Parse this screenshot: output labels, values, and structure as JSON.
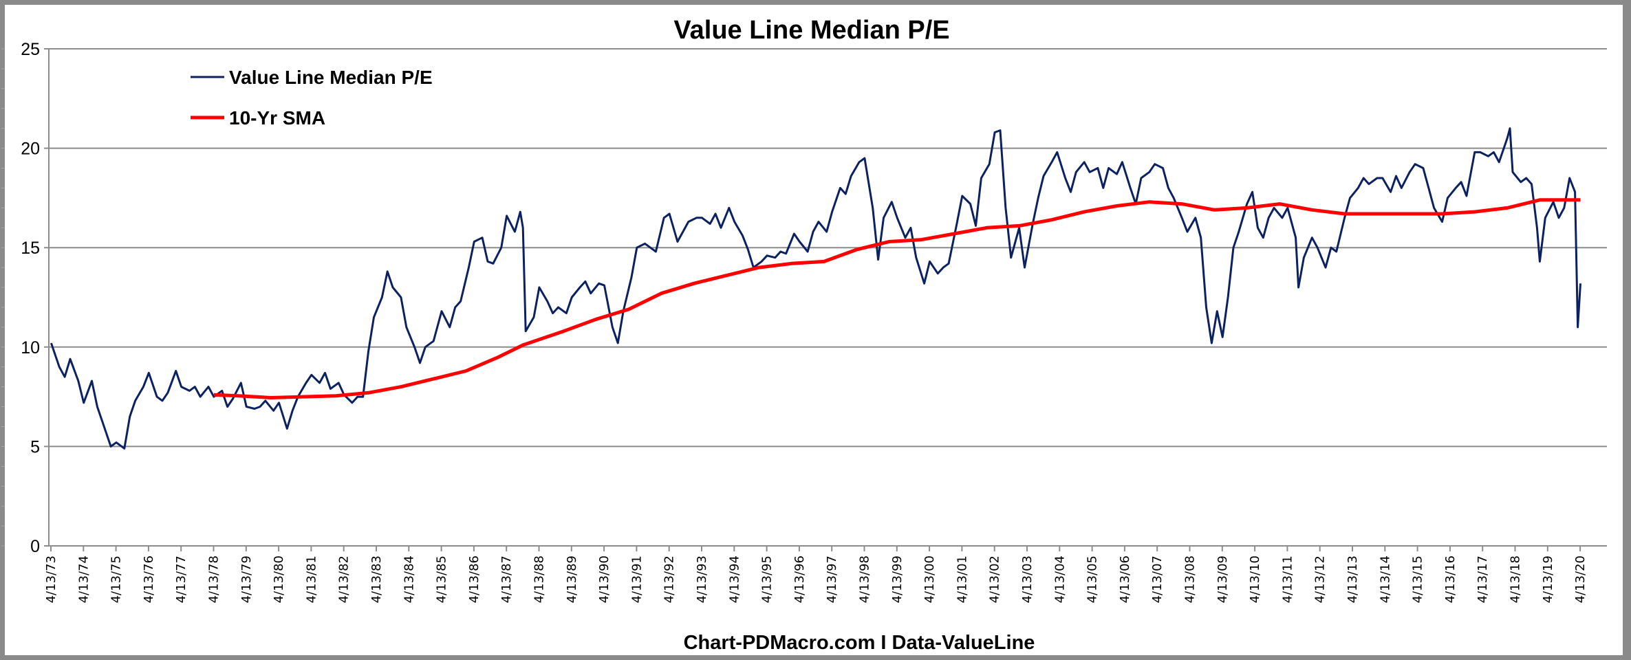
{
  "chart_data": {
    "type": "line",
    "title": "Value Line Median P/E",
    "footer": "Chart-PDMacro.com I Data-ValueLine",
    "ylim": [
      0,
      25
    ],
    "yticks": [
      0,
      5,
      10,
      15,
      20,
      25
    ],
    "grid": true,
    "legend_placement": "top-left",
    "xticks": [
      "4/13/73",
      "4/13/74",
      "4/13/75",
      "4/13/76",
      "4/13/77",
      "4/13/78",
      "4/13/79",
      "4/13/80",
      "4/13/81",
      "4/13/82",
      "4/13/83",
      "4/13/84",
      "4/13/85",
      "4/13/86",
      "4/13/87",
      "4/13/88",
      "4/13/89",
      "4/13/90",
      "4/13/91",
      "4/13/92",
      "4/13/93",
      "4/13/94",
      "4/13/95",
      "4/13/96",
      "4/13/97",
      "4/13/98",
      "4/13/99",
      "4/13/00",
      "4/13/01",
      "4/13/02",
      "4/13/03",
      "4/13/04",
      "4/13/05",
      "4/13/06",
      "4/13/07",
      "4/13/08",
      "4/13/09",
      "4/13/10",
      "4/13/11",
      "4/13/12",
      "4/13/13",
      "4/13/14",
      "4/13/15",
      "4/13/16",
      "4/13/17",
      "4/13/18",
      "4/13/19",
      "4/13/20"
    ],
    "series": [
      {
        "name": "Value Line Median P/E",
        "color": "#0b2161",
        "points": [
          [
            "1973-04",
            10.2
          ],
          [
            "1973-07",
            9.0
          ],
          [
            "1973-09",
            8.5
          ],
          [
            "1973-11",
            9.4
          ],
          [
            "1974-02",
            8.3
          ],
          [
            "1974-04",
            7.2
          ],
          [
            "1974-07",
            8.3
          ],
          [
            "1974-09",
            7.0
          ],
          [
            "1974-11",
            6.2
          ],
          [
            "1975-02",
            5.0
          ],
          [
            "1975-04",
            5.2
          ],
          [
            "1975-07",
            4.9
          ],
          [
            "1975-09",
            6.5
          ],
          [
            "1975-11",
            7.3
          ],
          [
            "1976-02",
            8.0
          ],
          [
            "1976-04",
            8.7
          ],
          [
            "1976-07",
            7.5
          ],
          [
            "1976-09",
            7.3
          ],
          [
            "1976-11",
            7.7
          ],
          [
            "1977-02",
            8.8
          ],
          [
            "1977-04",
            8.0
          ],
          [
            "1977-07",
            7.8
          ],
          [
            "1977-09",
            8.0
          ],
          [
            "1977-11",
            7.5
          ],
          [
            "1978-02",
            8.0
          ],
          [
            "1978-04",
            7.5
          ],
          [
            "1978-07",
            7.8
          ],
          [
            "1978-09",
            7.0
          ],
          [
            "1978-11",
            7.4
          ],
          [
            "1979-02",
            8.2
          ],
          [
            "1979-04",
            7.0
          ],
          [
            "1979-07",
            6.9
          ],
          [
            "1979-09",
            7.0
          ],
          [
            "1979-11",
            7.3
          ],
          [
            "1980-02",
            6.8
          ],
          [
            "1980-04",
            7.2
          ],
          [
            "1980-07",
            5.9
          ],
          [
            "1980-09",
            6.8
          ],
          [
            "1980-11",
            7.5
          ],
          [
            "1981-02",
            8.2
          ],
          [
            "1981-04",
            8.6
          ],
          [
            "1981-07",
            8.2
          ],
          [
            "1981-09",
            8.7
          ],
          [
            "1981-11",
            7.9
          ],
          [
            "1982-02",
            8.2
          ],
          [
            "1982-04",
            7.6
          ],
          [
            "1982-07",
            7.2
          ],
          [
            "1982-09",
            7.5
          ],
          [
            "1982-11",
            7.5
          ],
          [
            "1983-01",
            9.8
          ],
          [
            "1983-03",
            11.5
          ],
          [
            "1983-06",
            12.5
          ],
          [
            "1983-08",
            13.8
          ],
          [
            "1983-10",
            13.0
          ],
          [
            "1984-01",
            12.5
          ],
          [
            "1984-03",
            11.0
          ],
          [
            "1984-06",
            10.0
          ],
          [
            "1984-08",
            9.2
          ],
          [
            "1984-10",
            10.0
          ],
          [
            "1985-01",
            10.3
          ],
          [
            "1985-04",
            11.8
          ],
          [
            "1985-07",
            11.0
          ],
          [
            "1985-09",
            12.0
          ],
          [
            "1985-11",
            12.3
          ],
          [
            "1986-02",
            14.0
          ],
          [
            "1986-04",
            15.3
          ],
          [
            "1986-07",
            15.5
          ],
          [
            "1986-09",
            14.3
          ],
          [
            "1986-11",
            14.2
          ],
          [
            "1987-02",
            15.0
          ],
          [
            "1987-04",
            16.6
          ],
          [
            "1987-07",
            15.8
          ],
          [
            "1987-09",
            16.8
          ],
          [
            "1987-10",
            16.0
          ],
          [
            "1987-11",
            10.8
          ],
          [
            "1988-02",
            11.5
          ],
          [
            "1988-04",
            13.0
          ],
          [
            "1988-07",
            12.3
          ],
          [
            "1988-09",
            11.7
          ],
          [
            "1988-11",
            12.0
          ],
          [
            "1989-02",
            11.7
          ],
          [
            "1989-04",
            12.5
          ],
          [
            "1989-07",
            13.0
          ],
          [
            "1989-09",
            13.3
          ],
          [
            "1989-11",
            12.7
          ],
          [
            "1990-02",
            13.2
          ],
          [
            "1990-04",
            13.1
          ],
          [
            "1990-07",
            11.0
          ],
          [
            "1990-09",
            10.2
          ],
          [
            "1990-11",
            11.8
          ],
          [
            "1991-02",
            13.5
          ],
          [
            "1991-04",
            15.0
          ],
          [
            "1991-07",
            15.2
          ],
          [
            "1991-09",
            15.0
          ],
          [
            "1991-11",
            14.8
          ],
          [
            "1992-02",
            16.5
          ],
          [
            "1992-04",
            16.7
          ],
          [
            "1992-07",
            15.3
          ],
          [
            "1992-09",
            15.8
          ],
          [
            "1992-11",
            16.3
          ],
          [
            "1993-02",
            16.5
          ],
          [
            "1993-04",
            16.5
          ],
          [
            "1993-07",
            16.2
          ],
          [
            "1993-09",
            16.7
          ],
          [
            "1993-11",
            16.0
          ],
          [
            "1994-02",
            17.0
          ],
          [
            "1994-04",
            16.3
          ],
          [
            "1994-07",
            15.6
          ],
          [
            "1994-09",
            14.9
          ],
          [
            "1994-11",
            14.0
          ],
          [
            "1995-02",
            14.3
          ],
          [
            "1995-04",
            14.6
          ],
          [
            "1995-07",
            14.5
          ],
          [
            "1995-09",
            14.8
          ],
          [
            "1995-11",
            14.7
          ],
          [
            "1996-02",
            15.7
          ],
          [
            "1996-04",
            15.3
          ],
          [
            "1996-07",
            14.8
          ],
          [
            "1996-09",
            15.8
          ],
          [
            "1996-11",
            16.3
          ],
          [
            "1997-02",
            15.8
          ],
          [
            "1997-04",
            16.8
          ],
          [
            "1997-07",
            18.0
          ],
          [
            "1997-09",
            17.7
          ],
          [
            "1997-11",
            18.6
          ],
          [
            "1998-02",
            19.3
          ],
          [
            "1998-04",
            19.5
          ],
          [
            "1998-07",
            17.0
          ],
          [
            "1998-09",
            14.4
          ],
          [
            "1998-11",
            16.5
          ],
          [
            "1999-02",
            17.3
          ],
          [
            "1999-04",
            16.5
          ],
          [
            "1999-07",
            15.5
          ],
          [
            "1999-09",
            16.0
          ],
          [
            "1999-11",
            14.5
          ],
          [
            "2000-02",
            13.2
          ],
          [
            "2000-04",
            14.3
          ],
          [
            "2000-07",
            13.7
          ],
          [
            "2000-09",
            14.0
          ],
          [
            "2000-11",
            14.2
          ],
          [
            "2001-02",
            16.2
          ],
          [
            "2001-04",
            17.6
          ],
          [
            "2001-07",
            17.2
          ],
          [
            "2001-09",
            16.1
          ],
          [
            "2001-11",
            18.5
          ],
          [
            "2002-02",
            19.2
          ],
          [
            "2002-04",
            20.8
          ],
          [
            "2002-06",
            20.9
          ],
          [
            "2002-08",
            17.0
          ],
          [
            "2002-10",
            14.5
          ],
          [
            "2003-01",
            16.0
          ],
          [
            "2003-03",
            14.0
          ],
          [
            "2003-06",
            16.2
          ],
          [
            "2003-08",
            17.5
          ],
          [
            "2003-10",
            18.6
          ],
          [
            "2004-01",
            19.3
          ],
          [
            "2004-03",
            19.8
          ],
          [
            "2004-06",
            18.5
          ],
          [
            "2004-08",
            17.8
          ],
          [
            "2004-10",
            18.8
          ],
          [
            "2005-01",
            19.3
          ],
          [
            "2005-03",
            18.8
          ],
          [
            "2005-06",
            19.0
          ],
          [
            "2005-08",
            18.0
          ],
          [
            "2005-10",
            19.0
          ],
          [
            "2006-01",
            18.7
          ],
          [
            "2006-03",
            19.3
          ],
          [
            "2006-06",
            18.0
          ],
          [
            "2006-08",
            17.2
          ],
          [
            "2006-10",
            18.5
          ],
          [
            "2007-01",
            18.8
          ],
          [
            "2007-03",
            19.2
          ],
          [
            "2007-06",
            19.0
          ],
          [
            "2007-08",
            18.0
          ],
          [
            "2007-10",
            17.5
          ],
          [
            "2008-01",
            16.5
          ],
          [
            "2008-03",
            15.8
          ],
          [
            "2008-06",
            16.5
          ],
          [
            "2008-08",
            15.5
          ],
          [
            "2008-10",
            12.0
          ],
          [
            "2008-12",
            10.2
          ],
          [
            "2009-02",
            11.8
          ],
          [
            "2009-04",
            10.5
          ],
          [
            "2009-06",
            12.5
          ],
          [
            "2009-08",
            15.0
          ],
          [
            "2009-10",
            15.8
          ],
          [
            "2010-01",
            17.2
          ],
          [
            "2010-03",
            17.8
          ],
          [
            "2010-05",
            16.0
          ],
          [
            "2010-07",
            15.5
          ],
          [
            "2010-09",
            16.5
          ],
          [
            "2010-11",
            17.0
          ],
          [
            "2011-02",
            16.5
          ],
          [
            "2011-04",
            17.0
          ],
          [
            "2011-07",
            15.5
          ],
          [
            "2011-08",
            13.0
          ],
          [
            "2011-10",
            14.5
          ],
          [
            "2012-01",
            15.5
          ],
          [
            "2012-03",
            15.0
          ],
          [
            "2012-06",
            14.0
          ],
          [
            "2012-08",
            15.0
          ],
          [
            "2012-10",
            14.8
          ],
          [
            "2013-01",
            16.5
          ],
          [
            "2013-03",
            17.5
          ],
          [
            "2013-06",
            18.0
          ],
          [
            "2013-08",
            18.5
          ],
          [
            "2013-10",
            18.2
          ],
          [
            "2014-01",
            18.5
          ],
          [
            "2014-03",
            18.5
          ],
          [
            "2014-06",
            17.8
          ],
          [
            "2014-08",
            18.6
          ],
          [
            "2014-10",
            18.0
          ],
          [
            "2015-01",
            18.8
          ],
          [
            "2015-03",
            19.2
          ],
          [
            "2015-06",
            19.0
          ],
          [
            "2015-08",
            18.0
          ],
          [
            "2015-10",
            17.0
          ],
          [
            "2016-01",
            16.3
          ],
          [
            "2016-03",
            17.5
          ],
          [
            "2016-06",
            18.0
          ],
          [
            "2016-08",
            18.3
          ],
          [
            "2016-10",
            17.6
          ],
          [
            "2017-01",
            19.8
          ],
          [
            "2017-03",
            19.8
          ],
          [
            "2017-06",
            19.6
          ],
          [
            "2017-08",
            19.8
          ],
          [
            "2017-10",
            19.3
          ],
          [
            "2018-01",
            20.5
          ],
          [
            "2018-02",
            21.0
          ],
          [
            "2018-03",
            18.8
          ],
          [
            "2018-06",
            18.3
          ],
          [
            "2018-08",
            18.5
          ],
          [
            "2018-10",
            18.2
          ],
          [
            "2018-12",
            16.0
          ],
          [
            "2019-01",
            14.3
          ],
          [
            "2019-03",
            16.5
          ],
          [
            "2019-06",
            17.3
          ],
          [
            "2019-08",
            16.5
          ],
          [
            "2019-10",
            17.0
          ],
          [
            "2019-12",
            18.5
          ],
          [
            "2020-02",
            17.8
          ],
          [
            "2020-03",
            11.0
          ],
          [
            "2020-04",
            13.2
          ]
        ]
      },
      {
        "name": "10-Yr SMA",
        "color": "#ff0000",
        "points": [
          [
            "1978-04",
            7.6
          ],
          [
            "1979-01",
            7.55
          ],
          [
            "1980-01",
            7.45
          ],
          [
            "1981-01",
            7.5
          ],
          [
            "1982-01",
            7.55
          ],
          [
            "1983-01",
            7.7
          ],
          [
            "1984-01",
            8.0
          ],
          [
            "1985-01",
            8.4
          ],
          [
            "1986-01",
            8.8
          ],
          [
            "1987-01",
            9.5
          ],
          [
            "1987-10",
            10.1
          ],
          [
            "1989-01",
            10.8
          ],
          [
            "1990-01",
            11.4
          ],
          [
            "1991-01",
            11.9
          ],
          [
            "1992-01",
            12.7
          ],
          [
            "1993-01",
            13.2
          ],
          [
            "1994-01",
            13.6
          ],
          [
            "1995-01",
            14.0
          ],
          [
            "1996-01",
            14.2
          ],
          [
            "1997-01",
            14.3
          ],
          [
            "1998-01",
            14.9
          ],
          [
            "1999-01",
            15.3
          ],
          [
            "2000-01",
            15.4
          ],
          [
            "2001-01",
            15.7
          ],
          [
            "2002-01",
            16.0
          ],
          [
            "2003-01",
            16.1
          ],
          [
            "2004-01",
            16.4
          ],
          [
            "2005-01",
            16.8
          ],
          [
            "2006-01",
            17.1
          ],
          [
            "2007-01",
            17.3
          ],
          [
            "2008-01",
            17.2
          ],
          [
            "2009-01",
            16.9
          ],
          [
            "2010-01",
            17.0
          ],
          [
            "2011-01",
            17.2
          ],
          [
            "2012-01",
            16.9
          ],
          [
            "2013-01",
            16.7
          ],
          [
            "2014-01",
            16.7
          ],
          [
            "2015-01",
            16.7
          ],
          [
            "2016-01",
            16.7
          ],
          [
            "2017-01",
            16.8
          ],
          [
            "2018-01",
            17.0
          ],
          [
            "2019-01",
            17.4
          ],
          [
            "2020-04",
            17.4
          ]
        ]
      }
    ]
  }
}
